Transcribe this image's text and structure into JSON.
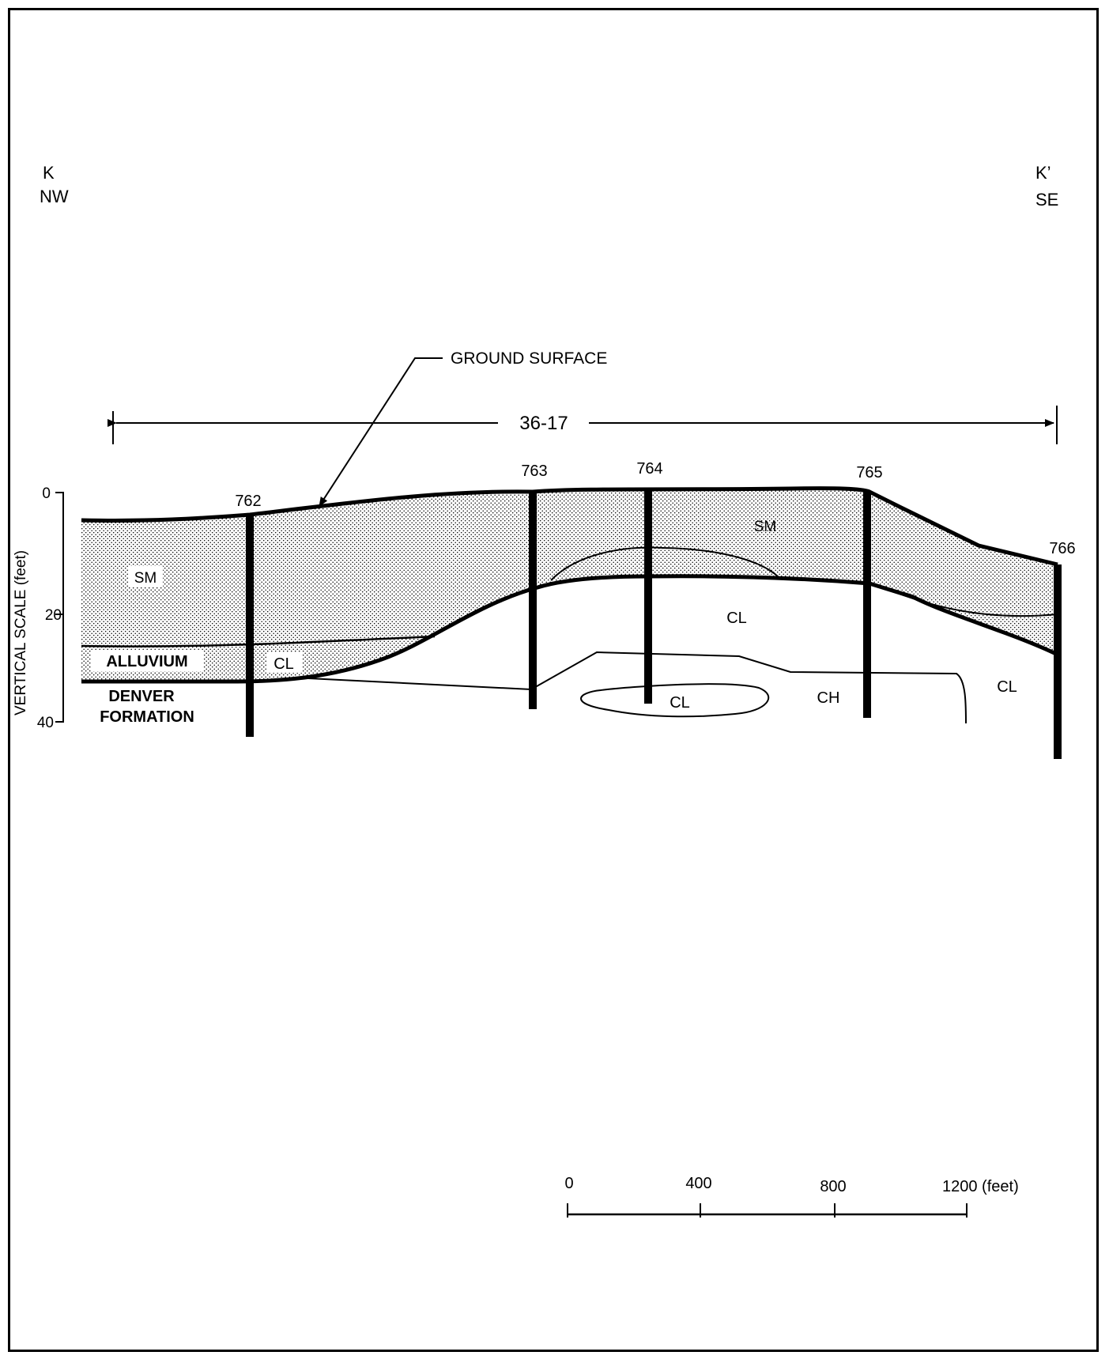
{
  "section": {
    "start_label": "K",
    "start_direction": "NW",
    "end_label": "K’",
    "end_direction": "SE"
  },
  "ground_surface_label": "GROUND SURFACE",
  "extent_label": "36-17",
  "vertical_scale": {
    "title": "VERTICAL SCALE (feet)",
    "ticks": [
      "0",
      "20",
      "40"
    ]
  },
  "borings": [
    "762",
    "763",
    "764",
    "765",
    "766"
  ],
  "soil_labels": {
    "sm_left": "SM",
    "sm_right": "SM",
    "cl_alluvium": "CL",
    "cl_upper": "CL",
    "cl_lens": "CL",
    "ch": "CH",
    "cl_right": "CL"
  },
  "units": {
    "alluvium": "ALLUVIUM",
    "denver_line1": "DENVER",
    "denver_line2": "FORMATION"
  },
  "horizontal_scale": {
    "ticks": [
      "0",
      "400",
      "800",
      "1200 (feet)"
    ]
  },
  "colors": {
    "ink": "#000000",
    "paper": "#ffffff",
    "stipple": "#000000"
  }
}
